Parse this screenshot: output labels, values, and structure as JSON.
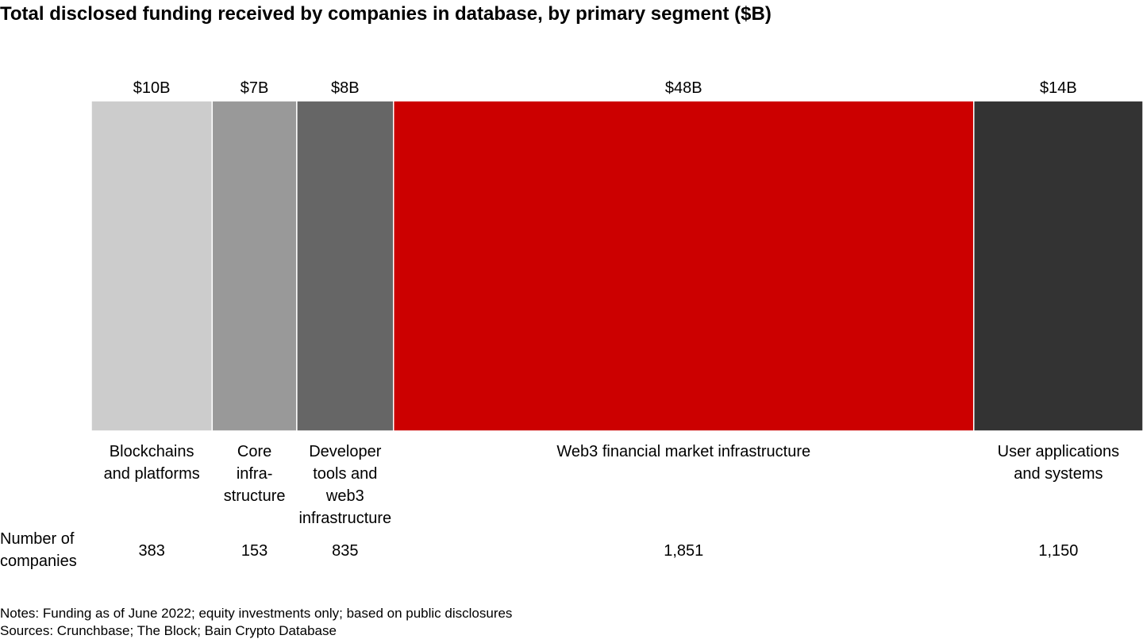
{
  "title": "Total disclosed funding received by companies in database, by primary segment ($B)",
  "row_label": "Number of\ncompanies",
  "notes": "Notes: Funding as of June 2022; equity investments only; based on public disclosures",
  "sources": "Sources: Crunchbase; The Block; Bain Crypto Database",
  "chart_data": {
    "type": "bar",
    "variant": "marimekko",
    "title": "Total disclosed funding received by companies in database, by primary segment ($B)",
    "width_measure": "funding ($B)",
    "categories": [
      {
        "lines": [
          "Blockchains",
          "and platforms"
        ],
        "value": 10,
        "value_label": "$10B",
        "companies": 383,
        "companies_label": "383",
        "color": "#cccccc"
      },
      {
        "lines": [
          "Core",
          "infra-",
          "structure"
        ],
        "value": 7,
        "value_label": "$7B",
        "companies": 153,
        "companies_label": "153",
        "color": "#999999"
      },
      {
        "lines": [
          "Developer",
          "tools and",
          "web3",
          "infrastructure"
        ],
        "value": 8,
        "value_label": "$8B",
        "companies": 835,
        "companies_label": "835",
        "color": "#666666"
      },
      {
        "lines": [
          "Web3 financial market infrastructure"
        ],
        "value": 48,
        "value_label": "$48B",
        "companies": 1851,
        "companies_label": "1,851",
        "color": "#cc0000"
      },
      {
        "lines": [
          "User applications",
          "and systems"
        ],
        "value": 14,
        "value_label": "$14B",
        "companies": 1150,
        "companies_label": "1,150",
        "color": "#333333"
      }
    ]
  }
}
